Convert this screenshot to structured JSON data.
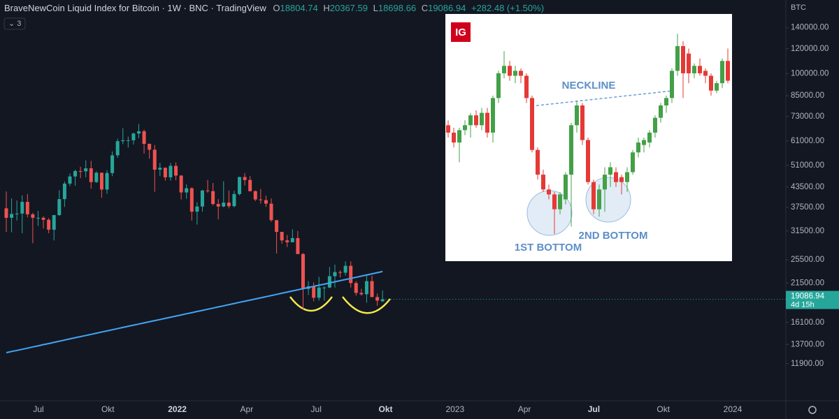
{
  "header": {
    "title": "BraveNewCoin Liquid Index for Bitcoin · 1W · BNC · TradingView",
    "ohlc_prefixes": [
      "O",
      "H",
      "L",
      "C"
    ],
    "change": "+282.48 (+1.50%)",
    "currency": "BTC",
    "indicator_count": 3,
    "countdown": "4d 15h"
  },
  "chart_data": [
    {
      "type": "candlestick",
      "log": true,
      "ylim": [
        9150,
        171600
      ],
      "yticks": [
        {
          "value": 140000,
          "label": "140000.00"
        },
        {
          "value": 120000,
          "label": "120000.00"
        },
        {
          "value": 100000,
          "label": "100000.00"
        },
        {
          "value": 85000,
          "label": "85000.00"
        },
        {
          "value": 73000,
          "label": "73000.00"
        },
        {
          "value": 61000,
          "label": "61000.00"
        },
        {
          "value": 51000,
          "label": "51000.00"
        },
        {
          "value": 43500,
          "label": "43500.00"
        },
        {
          "value": 37500,
          "label": "37500.00"
        },
        {
          "value": 31500,
          "label": "31500.00"
        },
        {
          "value": 25500,
          "label": "25500.00"
        },
        {
          "value": 21500,
          "label": "21500.00"
        },
        {
          "value": 16100,
          "label": "16100.00"
        },
        {
          "value": 13700,
          "label": "13700.00"
        },
        {
          "value": 11900,
          "label": "11900.00"
        }
      ],
      "x_labels": [
        "Jul",
        "Okt",
        "2022",
        "Apr",
        "Jul",
        "Okt",
        "2023",
        "Apr",
        "Jul",
        "Okt",
        "2024"
      ],
      "up_color": "#26a69a",
      "down_color": "#ef5350",
      "ohlc": [
        [
          37200,
          42100,
          31300,
          34700
        ],
        [
          34700,
          40000,
          31200,
          35700
        ],
        [
          35700,
          39400,
          34000,
          35800
        ],
        [
          35800,
          40900,
          31000,
          39000
        ],
        [
          39000,
          41300,
          34800,
          35600
        ],
        [
          35600,
          36000,
          28800,
          34700
        ],
        [
          34700,
          36500,
          32700,
          34700
        ],
        [
          34700,
          35100,
          32100,
          34200
        ],
        [
          34200,
          34600,
          31000,
          31800
        ],
        [
          31800,
          35400,
          29400,
          35400
        ],
        [
          35400,
          42500,
          35200,
          39800
        ],
        [
          39800,
          45300,
          37600,
          44600
        ],
        [
          44600,
          48000,
          43800,
          47000
        ],
        [
          47000,
          49400,
          43900,
          48900
        ],
        [
          48900,
          50500,
          46400,
          48800
        ],
        [
          48800,
          52900,
          46700,
          49900
        ],
        [
          49900,
          52700,
          43000,
          45100
        ],
        [
          45100,
          48800,
          44800,
          48300
        ],
        [
          48300,
          48400,
          40200,
          42700
        ],
        [
          42700,
          49200,
          41400,
          48200
        ],
        [
          48200,
          56500,
          47100,
          54900
        ],
        [
          54900,
          62000,
          53900,
          60900
        ],
        [
          60900,
          67000,
          59600,
          61300
        ],
        [
          61300,
          63000,
          58100,
          61300
        ],
        [
          61300,
          64800,
          59400,
          64400
        ],
        [
          64400,
          69000,
          62300,
          65500
        ],
        [
          65500,
          66300,
          55600,
          59700
        ],
        [
          59700,
          59900,
          53600,
          57200
        ],
        [
          57200,
          59200,
          42000,
          49400
        ],
        [
          49400,
          51900,
          47100,
          50100
        ],
        [
          50100,
          50200,
          45600,
          46700
        ],
        [
          46700,
          51900,
          45600,
          50800
        ],
        [
          50800,
          52100,
          45700,
          47300
        ],
        [
          47300,
          47500,
          39700,
          41800
        ],
        [
          41800,
          44400,
          39900,
          43100
        ],
        [
          43100,
          43400,
          34000,
          36300
        ],
        [
          36300,
          38900,
          33000,
          37700
        ],
        [
          37700,
          42600,
          36300,
          42400
        ],
        [
          42400,
          45800,
          41700,
          42200
        ],
        [
          42200,
          44800,
          38000,
          38400
        ],
        [
          38400,
          39800,
          34300,
          37700
        ],
        [
          37700,
          45400,
          37500,
          38800
        ],
        [
          38800,
          42400,
          37200,
          37800
        ],
        [
          37800,
          42300,
          37500,
          41300
        ],
        [
          41300,
          46900,
          40900,
          46800
        ],
        [
          46800,
          48200,
          44000,
          45800
        ],
        [
          45800,
          47100,
          42100,
          42200
        ],
        [
          42200,
          42400,
          39200,
          39700
        ],
        [
          39700,
          42900,
          38500,
          39500
        ],
        [
          39500,
          40800,
          37600,
          38500
        ],
        [
          38500,
          40000,
          33700,
          34100
        ],
        [
          34100,
          34200,
          26700,
          31300
        ],
        [
          31300,
          31300,
          28700,
          29400
        ],
        [
          29400,
          30600,
          28000,
          29000
        ],
        [
          29000,
          31900,
          29000,
          29900
        ],
        [
          29900,
          31500,
          26600,
          26600
        ],
        [
          26600,
          26800,
          17700,
          20600
        ],
        [
          20600,
          21800,
          19700,
          21000
        ],
        [
          21000,
          21600,
          18800,
          19300
        ],
        [
          19300,
          22500,
          18900,
          20800
        ],
        [
          20800,
          21000,
          18900,
          20800
        ],
        [
          20800,
          24200,
          20700,
          22600
        ],
        [
          22600,
          24600,
          20800,
          23300
        ],
        [
          23300,
          23600,
          22400,
          23200
        ],
        [
          23200,
          25200,
          22700,
          24400
        ],
        [
          24400,
          25200,
          20800,
          21500
        ],
        [
          21500,
          21800,
          19600,
          20000
        ],
        [
          20000,
          20600,
          19600,
          19800
        ],
        [
          19800,
          22800,
          18600,
          21800
        ],
        [
          21800,
          22700,
          19400,
          19400
        ],
        [
          19400,
          19900,
          18200,
          18900
        ],
        [
          18804.74,
          20367.59,
          18698.66,
          19086.94
        ]
      ],
      "ma": {
        "color": "#42a5f5",
        "values": [
          12900,
          13010,
          13110,
          13220,
          13330,
          13450,
          13560,
          13680,
          13790,
          13910,
          14030,
          14150,
          14270,
          14390,
          14510,
          14630,
          14750,
          14880,
          15010,
          15130,
          15260,
          15390,
          15520,
          15650,
          15780,
          15910,
          16050,
          16180,
          16320,
          16450,
          16590,
          16730,
          16870,
          17010,
          17160,
          17300,
          17450,
          17590,
          17740,
          17890,
          18040,
          18190,
          18350,
          18500,
          18660,
          18810,
          18970,
          19130,
          19290,
          19450,
          19610,
          19780,
          19950,
          20120,
          20290,
          20460,
          20630,
          20800,
          20980,
          21160,
          21330,
          21510,
          21700,
          21880,
          22060,
          22240,
          22430,
          22620,
          22810,
          23000,
          23190,
          23400
        ]
      }
    },
    {
      "type": "candlestick",
      "logo": "IG",
      "annotations": [
        "NECKLINE",
        "1ST BOTTOM",
        "2ND BOTTOM"
      ],
      "ylim": [
        0,
        100
      ],
      "up_color": "#43a047",
      "down_color": "#e53935",
      "ohlc": [
        [
          55,
          57,
          50,
          52
        ],
        [
          52,
          54,
          46,
          48
        ],
        [
          48,
          54,
          40,
          53
        ],
        [
          53,
          57,
          51,
          55
        ],
        [
          55,
          60,
          50,
          59
        ],
        [
          59,
          61,
          54,
          55
        ],
        [
          55,
          62,
          53,
          60
        ],
        [
          60,
          62,
          50,
          52
        ],
        [
          52,
          67,
          48,
          66
        ],
        [
          66,
          77,
          64,
          76
        ],
        [
          76,
          85,
          74,
          79
        ],
        [
          79,
          81,
          73,
          75
        ],
        [
          75,
          79,
          72,
          77
        ],
        [
          77,
          78,
          72,
          75
        ],
        [
          75,
          76,
          64,
          66
        ],
        [
          66,
          67,
          44,
          45
        ],
        [
          45,
          46,
          33,
          35
        ],
        [
          35,
          37,
          28,
          29
        ],
        [
          29,
          31,
          25,
          27
        ],
        [
          27,
          28,
          11,
          21
        ],
        [
          21,
          28,
          19,
          27
        ],
        [
          25,
          36,
          23,
          35
        ],
        [
          35,
          56,
          14,
          55
        ],
        [
          55,
          65,
          52,
          63
        ],
        [
          63,
          64,
          47,
          49
        ],
        [
          49,
          50,
          31,
          32
        ],
        [
          32,
          33,
          19,
          21
        ],
        [
          21,
          31,
          18,
          29
        ],
        [
          29,
          38,
          20,
          35
        ],
        [
          35,
          40,
          30,
          38
        ],
        [
          36,
          38,
          30,
          32
        ],
        [
          34,
          35,
          27,
          32
        ],
        [
          32,
          38,
          28,
          36
        ],
        [
          36,
          45,
          35,
          44
        ],
        [
          44,
          50,
          42,
          48
        ],
        [
          47,
          50,
          44,
          49
        ],
        [
          48,
          53,
          46,
          52
        ],
        [
          52,
          59,
          50,
          58
        ],
        [
          58,
          64,
          56,
          63
        ],
        [
          63,
          67,
          60,
          66
        ],
        [
          66,
          78,
          64,
          77
        ],
        [
          77,
          92,
          75,
          87
        ],
        [
          87,
          89,
          66,
          76
        ],
        [
          84,
          86,
          72,
          76
        ],
        [
          76,
          80,
          74,
          79
        ],
        [
          79,
          82,
          75,
          76
        ],
        [
          77,
          78,
          72,
          75
        ],
        [
          75,
          76,
          67,
          69
        ],
        [
          69,
          73,
          68,
          72
        ],
        [
          72,
          82,
          70,
          81
        ],
        [
          81,
          86,
          72,
          73
        ]
      ]
    }
  ]
}
